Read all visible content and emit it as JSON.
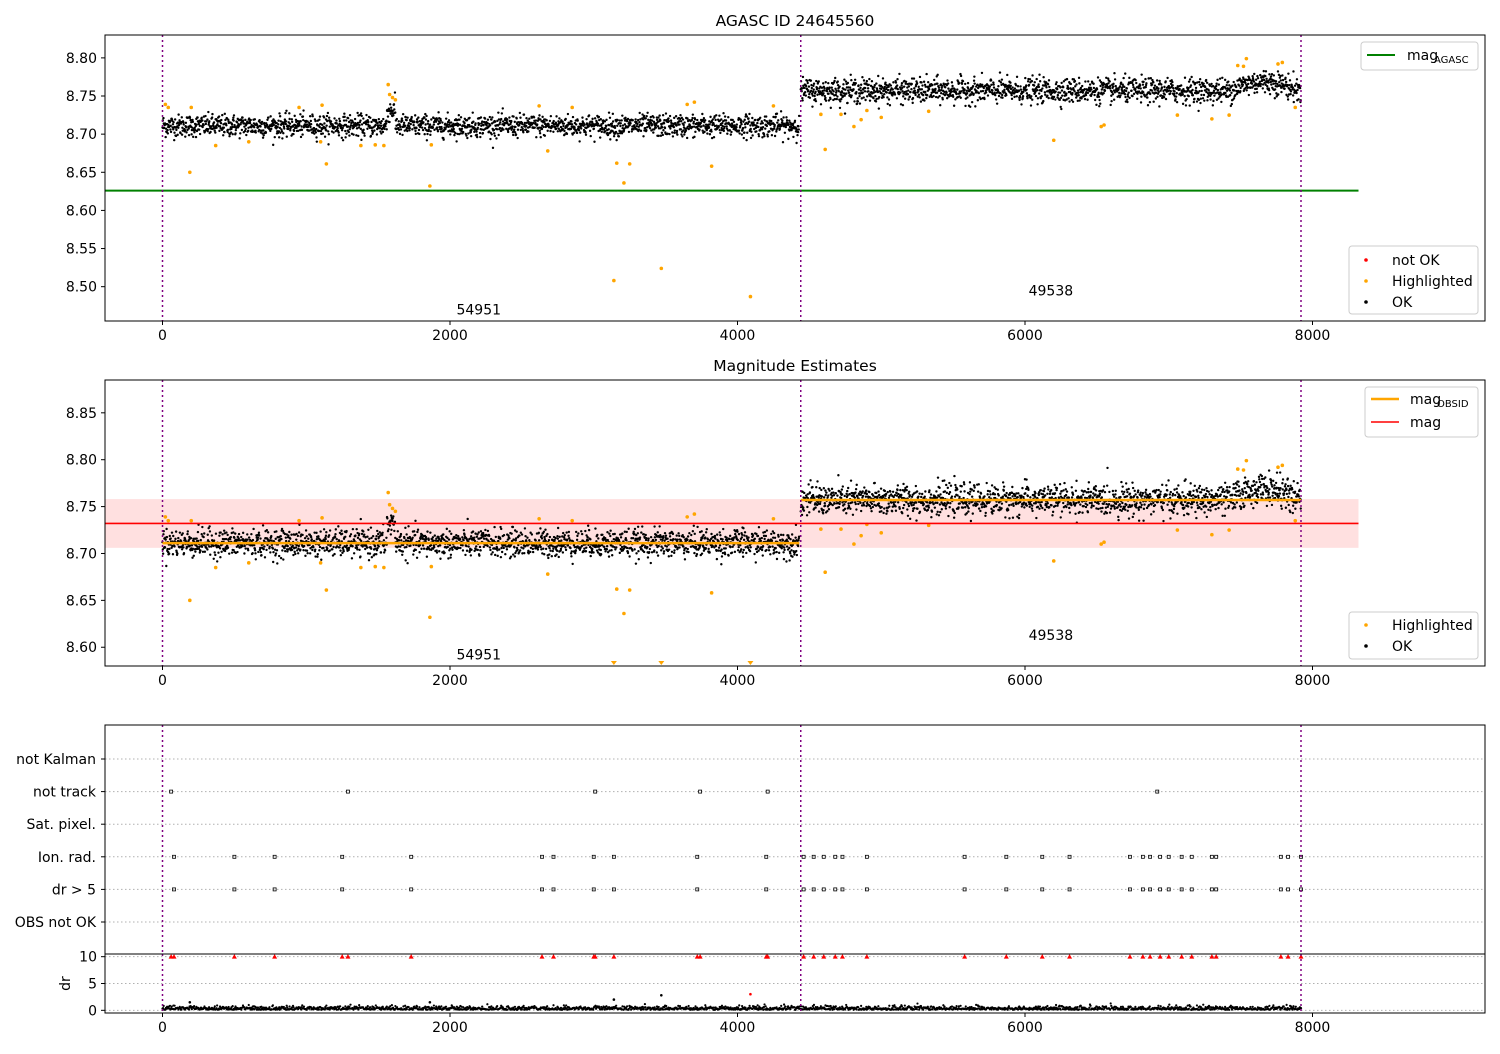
{
  "chart_data": [
    {
      "type": "scatter",
      "title": "AGASC ID 24645560",
      "xlim": [
        -400,
        9200
      ],
      "ylim": [
        8.455,
        8.83
      ],
      "x_ticks": [
        0,
        2000,
        4000,
        6000,
        8000
      ],
      "y_ticks": [
        8.5,
        8.55,
        8.6,
        8.65,
        8.7,
        8.75,
        8.8
      ],
      "vlines": [
        0,
        4440,
        7920
      ],
      "obsids": [
        {
          "label": "54951",
          "x": 2200,
          "y": 8.47
        },
        {
          "label": "49538",
          "x": 6180,
          "y": 8.495
        }
      ],
      "reference_lines": [
        {
          "name": "mag_AGASC",
          "legend_main": "mag",
          "legend_sub": "AGASC",
          "y": 8.626,
          "x_range": [
            -400,
            8320
          ],
          "color": "#008000"
        }
      ],
      "segments": [
        {
          "x_range": [
            0,
            4430
          ],
          "mean": 8.711,
          "sd": 0.009
        },
        {
          "x_range": [
            4440,
            7920
          ],
          "mean": 8.757,
          "sd": 0.01
        }
      ],
      "highlighted_points": [
        [
          20,
          8.739
        ],
        [
          40,
          8.735
        ],
        [
          190,
          8.65
        ],
        [
          200,
          8.735
        ],
        [
          370,
          8.685
        ],
        [
          600,
          8.69
        ],
        [
          950,
          8.735
        ],
        [
          1100,
          8.69
        ],
        [
          1110,
          8.738
        ],
        [
          1140,
          8.661
        ],
        [
          1380,
          8.685
        ],
        [
          1480,
          8.686
        ],
        [
          1540,
          8.685
        ],
        [
          1570,
          8.765
        ],
        [
          1580,
          8.752
        ],
        [
          1600,
          8.748
        ],
        [
          1620,
          8.745
        ],
        [
          1860,
          8.632
        ],
        [
          1870,
          8.686
        ],
        [
          2620,
          8.737
        ],
        [
          2680,
          8.678
        ],
        [
          2850,
          8.735
        ],
        [
          3140,
          8.508
        ],
        [
          3160,
          8.662
        ],
        [
          3210,
          8.636
        ],
        [
          3250,
          8.661
        ],
        [
          3470,
          8.524
        ],
        [
          3650,
          8.739
        ],
        [
          3700,
          8.742
        ],
        [
          3820,
          8.658
        ],
        [
          4090,
          8.487
        ],
        [
          4250,
          8.737
        ],
        [
          4580,
          8.726
        ],
        [
          4610,
          8.68
        ],
        [
          4720,
          8.726
        ],
        [
          4810,
          8.71
        ],
        [
          4860,
          8.719
        ],
        [
          4900,
          8.731
        ],
        [
          5000,
          8.722
        ],
        [
          5330,
          8.73
        ],
        [
          6200,
          8.692
        ],
        [
          6530,
          8.71
        ],
        [
          6550,
          8.712
        ],
        [
          7060,
          8.725
        ],
        [
          7300,
          8.72
        ],
        [
          7420,
          8.725
        ],
        [
          7480,
          8.79
        ],
        [
          7520,
          8.789
        ],
        [
          7540,
          8.799
        ],
        [
          7760,
          8.792
        ],
        [
          7790,
          8.794
        ],
        [
          7880,
          8.735
        ]
      ],
      "legend": {
        "position": "lower right",
        "entries": [
          "not OK",
          "Highlighted",
          "OK"
        ]
      },
      "legend_upper": {
        "position": "upper right",
        "entries": [
          "mag_AGASC"
        ]
      },
      "grid": false
    },
    {
      "type": "scatter",
      "title": "Magnitude Estimates",
      "xlim": [
        -400,
        9200
      ],
      "ylim": [
        8.58,
        8.885
      ],
      "x_ticks": [
        0,
        2000,
        4000,
        6000,
        8000
      ],
      "y_ticks": [
        8.6,
        8.65,
        8.7,
        8.75,
        8.8,
        8.85
      ],
      "vlines": [
        0,
        4440,
        7920
      ],
      "obsids": [
        {
          "label": "54951",
          "x": 2200,
          "y": 8.592
        },
        {
          "label": "49538",
          "x": 6180,
          "y": 8.613
        }
      ],
      "reference_lines": [
        {
          "name": "mag",
          "y": 8.732,
          "x_range": [
            -400,
            8320
          ],
          "color": "#ff0000",
          "band": [
            8.706,
            8.758
          ]
        }
      ],
      "obsid_mag_lines": [
        {
          "x_range": [
            0,
            4430
          ],
          "y": 8.711,
          "color": "#ffa500"
        },
        {
          "x_range": [
            4440,
            7920
          ],
          "y": 8.757,
          "color": "#ffa500"
        }
      ],
      "legend": {
        "position": "lower right",
        "entries": [
          "Highlighted",
          "OK"
        ]
      },
      "legend_upper": {
        "position": "upper right",
        "entries": [
          "mag_OBSID",
          "mag"
        ]
      },
      "grid": false
    },
    {
      "type": "scatter",
      "title": "",
      "xlim": [
        -400,
        9200
      ],
      "categories": [
        "not Kalman",
        "not track",
        "Sat. pixel.",
        "Ion. rad.",
        "dr > 5",
        "OBS not OK"
      ],
      "flag_x": {
        "not Kalman": [],
        "not track": [
          60,
          1290,
          3010,
          3740,
          4210,
          6920
        ],
        "Sat. pixel.": [],
        "Ion. rad.": [
          80,
          500,
          780,
          1250,
          1730,
          2640,
          2720,
          3000,
          3140,
          3720,
          4200,
          4460,
          4530,
          4600,
          4680,
          4730,
          4900,
          5580,
          5870,
          6120,
          6310,
          6730,
          6820,
          6870,
          6940,
          7000,
          7090,
          7160,
          7300,
          7330,
          7780,
          7830,
          7920
        ],
        "dr > 5": [
          80,
          500,
          780,
          1250,
          1730,
          2640,
          2720,
          3000,
          3140,
          3720,
          4200,
          4460,
          4530,
          4600,
          4680,
          4730,
          4900,
          5580,
          5870,
          6120,
          6310,
          6730,
          6820,
          6870,
          6940,
          7000,
          7090,
          7160,
          7300,
          7330,
          7780,
          7830,
          7920
        ],
        "OBS not OK": []
      },
      "vlines": [
        0,
        4440,
        7920
      ],
      "grid": true,
      "legend": null
    },
    {
      "type": "scatter",
      "title": "",
      "xlabel": "",
      "ylabel": "dr",
      "xlim": [
        -400,
        9200
      ],
      "ylim": [
        -0.5,
        10.5
      ],
      "x_ticks": [
        0,
        2000,
        4000,
        6000,
        8000
      ],
      "y_ticks": [
        0,
        5,
        10
      ],
      "clipped_value": 10,
      "clipped_x": [
        60,
        80,
        500,
        780,
        1250,
        1290,
        1730,
        2640,
        2720,
        3000,
        3010,
        3140,
        3720,
        3740,
        4200,
        4210,
        4460,
        4530,
        4600,
        4680,
        4730,
        4900,
        5580,
        5870,
        6120,
        6310,
        6730,
        6820,
        6870,
        6940,
        7000,
        7090,
        7160,
        7300,
        7330,
        7780,
        7830,
        7920
      ],
      "outliers": [
        [
          190,
          1.5
        ],
        [
          1860,
          1.5
        ],
        [
          3140,
          2.0
        ],
        [
          3470,
          2.8
        ],
        [
          4090,
          3.0
        ]
      ],
      "vlines": [
        0,
        4440,
        7920
      ],
      "grid": true
    }
  ]
}
